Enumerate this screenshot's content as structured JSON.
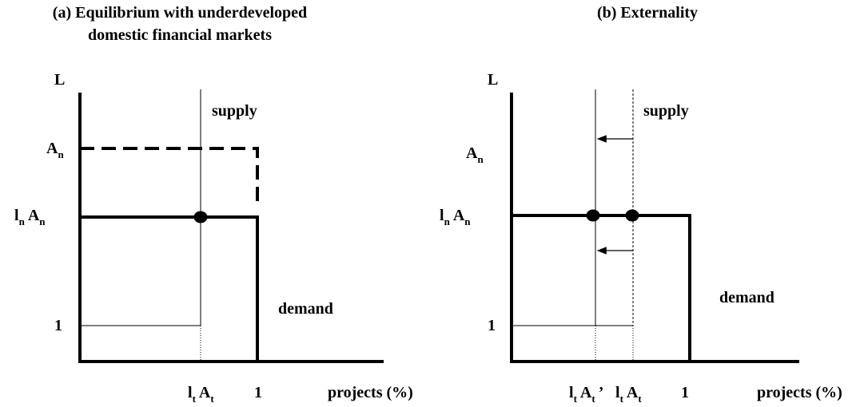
{
  "panels": [
    {
      "title": [
        "(a) Equilibrium with underdeveloped",
        "domestic financial markets"
      ],
      "y_axis": "L",
      "y_labels": [
        [
          {
            "text": "A",
            "sub": "n"
          }
        ],
        [
          {
            "text": "l",
            "sub": "n"
          },
          {
            "text": "A",
            "sub": "n"
          }
        ],
        [
          {
            "text": "1"
          }
        ]
      ],
      "supply": "supply",
      "demand": "demand",
      "x_labels": [
        [
          {
            "text": "l",
            "sub": "t"
          },
          {
            "text": "A",
            "sub": "t"
          }
        ],
        [
          {
            "text": "1"
          }
        ]
      ],
      "x_axis": "projects (%)"
    },
    {
      "title": [
        "(b) Externality"
      ],
      "y_axis": "L",
      "y_labels": [
        [
          {
            "text": "A",
            "sub": "n"
          }
        ],
        [
          {
            "text": "l",
            "sub": "n"
          },
          {
            "text": "A",
            "sub": "n"
          }
        ],
        [
          {
            "text": "1"
          }
        ]
      ],
      "supply": "supply",
      "demand": "demand",
      "x_labels": [
        [
          {
            "text": "l",
            "sub": "t"
          },
          {
            "text": "A",
            "sub": "t"
          },
          {
            "text": "’"
          }
        ],
        [
          {
            "text": "l",
            "sub": "t"
          },
          {
            "text": "A",
            "sub": "t"
          }
        ],
        [
          {
            "text": "1"
          }
        ]
      ],
      "x_axis": "projects (%)"
    }
  ]
}
